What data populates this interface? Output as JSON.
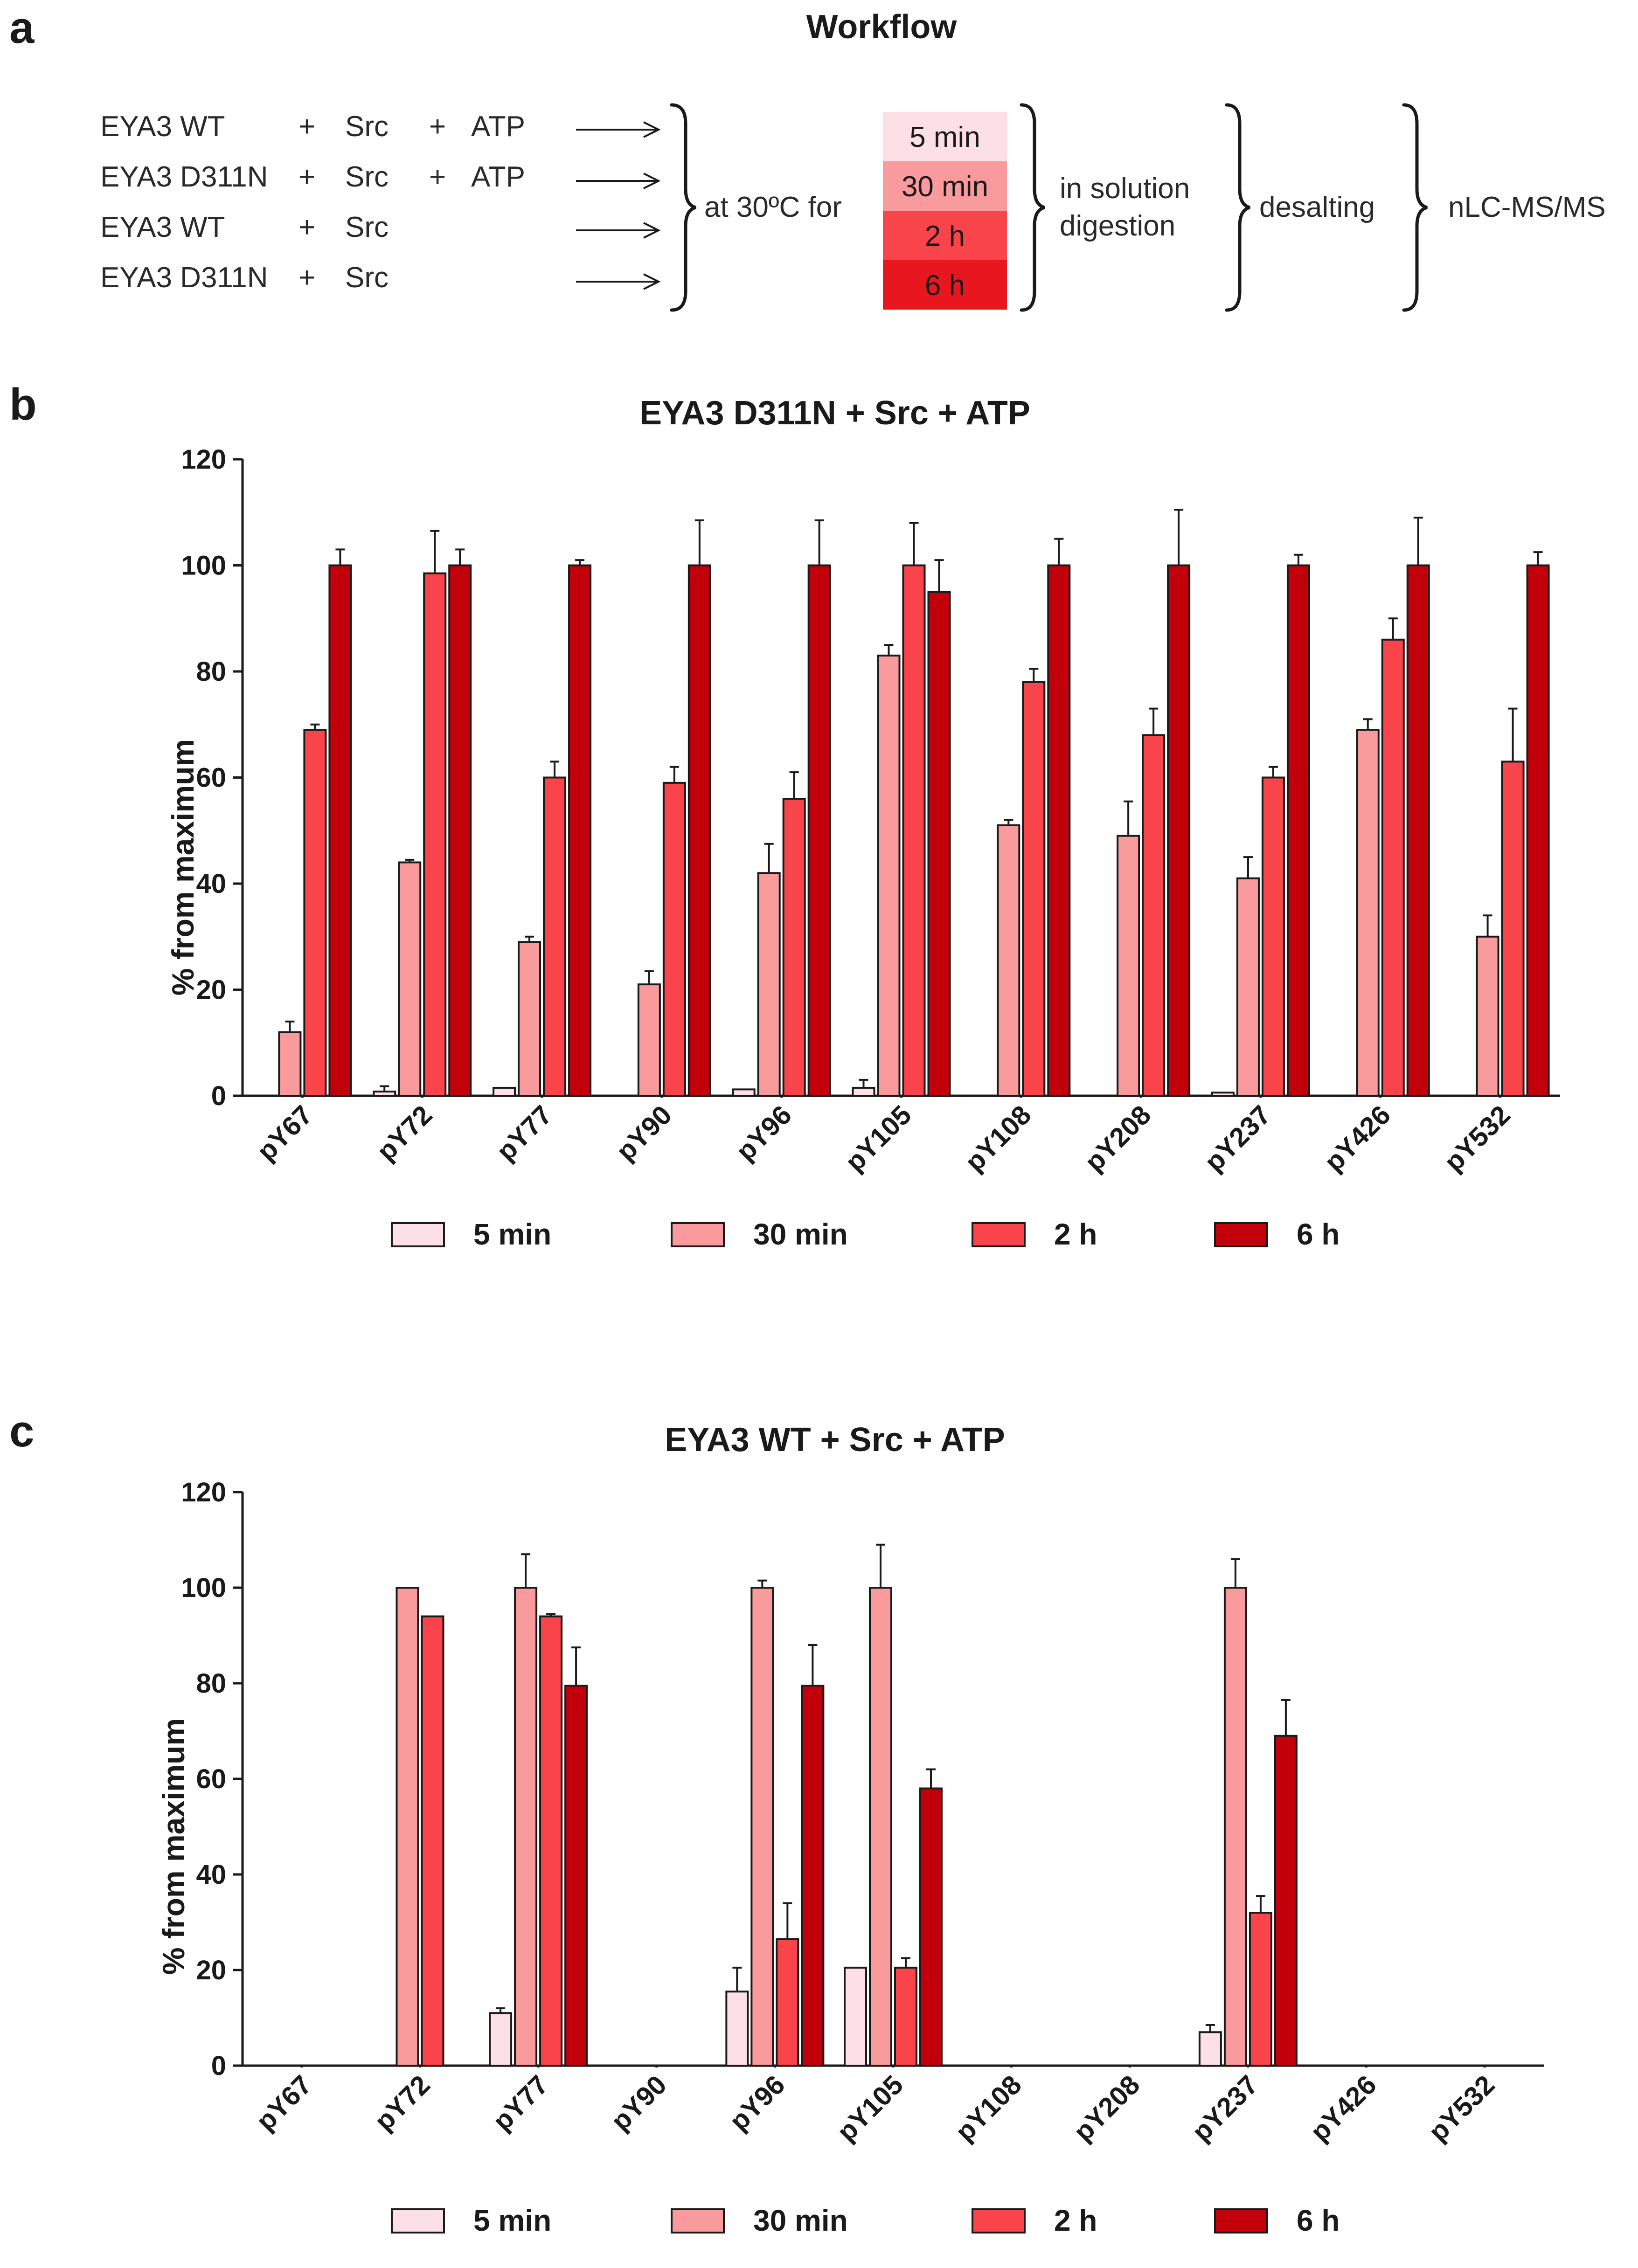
{
  "colors": {
    "5 min": "#fde0e6",
    "30 min": "#f99a9c",
    "2 h": "#f8444a",
    "6 h": "#c2000b",
    "axis": "#1a1a1a"
  },
  "panel_a": {
    "letter": "a",
    "title": "Workflow",
    "conditions": [
      {
        "protein": "EYA3 WT",
        "plus1": "+",
        "kinase": "Src",
        "plus2": "+",
        "atp": "ATP"
      },
      {
        "protein": "EYA3 D311N",
        "plus1": "+",
        "kinase": "Src",
        "plus2": "+",
        "atp": "ATP"
      },
      {
        "protein": "EYA3 WT",
        "plus1": "+",
        "kinase": "Src",
        "plus2": "",
        "atp": ""
      },
      {
        "protein": "EYA3 D311N",
        "plus1": "+",
        "kinase": "Src",
        "plus2": "",
        "atp": ""
      }
    ],
    "incubation": "at 30ºC for",
    "times": [
      "5 min",
      "30 min",
      "2 h",
      "6 h"
    ],
    "step_digestion": [
      "in solution",
      "digestion"
    ],
    "step_desalting": "desalting",
    "step_ms": "nLC-MS/MS"
  },
  "chart_data": [
    {
      "panel": "b",
      "type": "bar",
      "title": "EYA3 D311N  + Src + ATP",
      "xlabel": "",
      "ylabel": "% from maximum",
      "ylim": [
        0,
        120
      ],
      "yticks": [
        0,
        20,
        40,
        60,
        80,
        100,
        120
      ],
      "grid": false,
      "legend_position": "bottom",
      "categories": [
        "pY67",
        "pY72",
        "pY77",
        "pY90",
        "pY96",
        "pY105",
        "pY108",
        "pY208",
        "pY237",
        "pY426",
        "pY532"
      ],
      "series": [
        {
          "name": "5 min",
          "values": [
            null,
            0.8,
            1.5,
            null,
            1.2,
            1.5,
            null,
            null,
            0.6,
            null,
            null
          ],
          "errors": [
            null,
            1.0,
            0,
            null,
            0,
            1.5,
            null,
            null,
            0,
            null,
            null
          ]
        },
        {
          "name": "30 min",
          "values": [
            12,
            44,
            29,
            21,
            42,
            83,
            51,
            49,
            41,
            69,
            30
          ],
          "errors": [
            2,
            0.5,
            1,
            2.5,
            5.5,
            2,
            1,
            6.5,
            4,
            2,
            4
          ]
        },
        {
          "name": "2 h",
          "values": [
            69,
            98.5,
            60,
            59,
            56,
            100,
            78,
            68,
            60,
            86,
            63
          ],
          "errors": [
            1,
            8,
            3,
            3,
            5,
            8,
            2.5,
            5,
            2,
            4,
            10
          ]
        },
        {
          "name": "6 h",
          "values": [
            100,
            100,
            100,
            100,
            100,
            95,
            100,
            100,
            100,
            100,
            100
          ],
          "errors": [
            3,
            3,
            1,
            8.5,
            8.5,
            6,
            5,
            10.5,
            2,
            9,
            2.5
          ]
        }
      ]
    },
    {
      "panel": "c",
      "type": "bar",
      "title": "EYA3 WT  + Src + ATP",
      "xlabel": "",
      "ylabel": "% from maximum",
      "ylim": [
        0,
        120
      ],
      "yticks": [
        0,
        20,
        40,
        60,
        80,
        100,
        120
      ],
      "grid": false,
      "legend_position": "bottom",
      "categories": [
        "pY67",
        "pY72",
        "pY77",
        "pY90",
        "pY96",
        "pY105",
        "pY108",
        "pY208",
        "pY237",
        "pY426",
        "pY532"
      ],
      "series": [
        {
          "name": "5 min",
          "values": [
            null,
            null,
            11,
            null,
            15.5,
            20.5,
            null,
            null,
            7,
            null,
            null
          ],
          "errors": [
            null,
            null,
            1,
            null,
            5,
            0,
            null,
            null,
            1.5,
            null,
            null
          ]
        },
        {
          "name": "30 min",
          "values": [
            null,
            100,
            100,
            null,
            100,
            100,
            null,
            null,
            100,
            null,
            null
          ],
          "errors": [
            null,
            0,
            7,
            null,
            1.5,
            9,
            null,
            null,
            6,
            null,
            null
          ]
        },
        {
          "name": "2 h",
          "values": [
            null,
            94,
            94,
            null,
            26.5,
            20.5,
            null,
            null,
            32,
            null,
            null
          ],
          "errors": [
            null,
            0,
            0.5,
            null,
            7.5,
            2,
            null,
            null,
            3.5,
            null,
            null
          ]
        },
        {
          "name": "6 h",
          "values": [
            null,
            null,
            79.5,
            null,
            79.5,
            58,
            null,
            null,
            69,
            null,
            null
          ],
          "errors": [
            null,
            null,
            8,
            null,
            8.5,
            4,
            null,
            null,
            7.5,
            null,
            null
          ]
        }
      ]
    }
  ]
}
